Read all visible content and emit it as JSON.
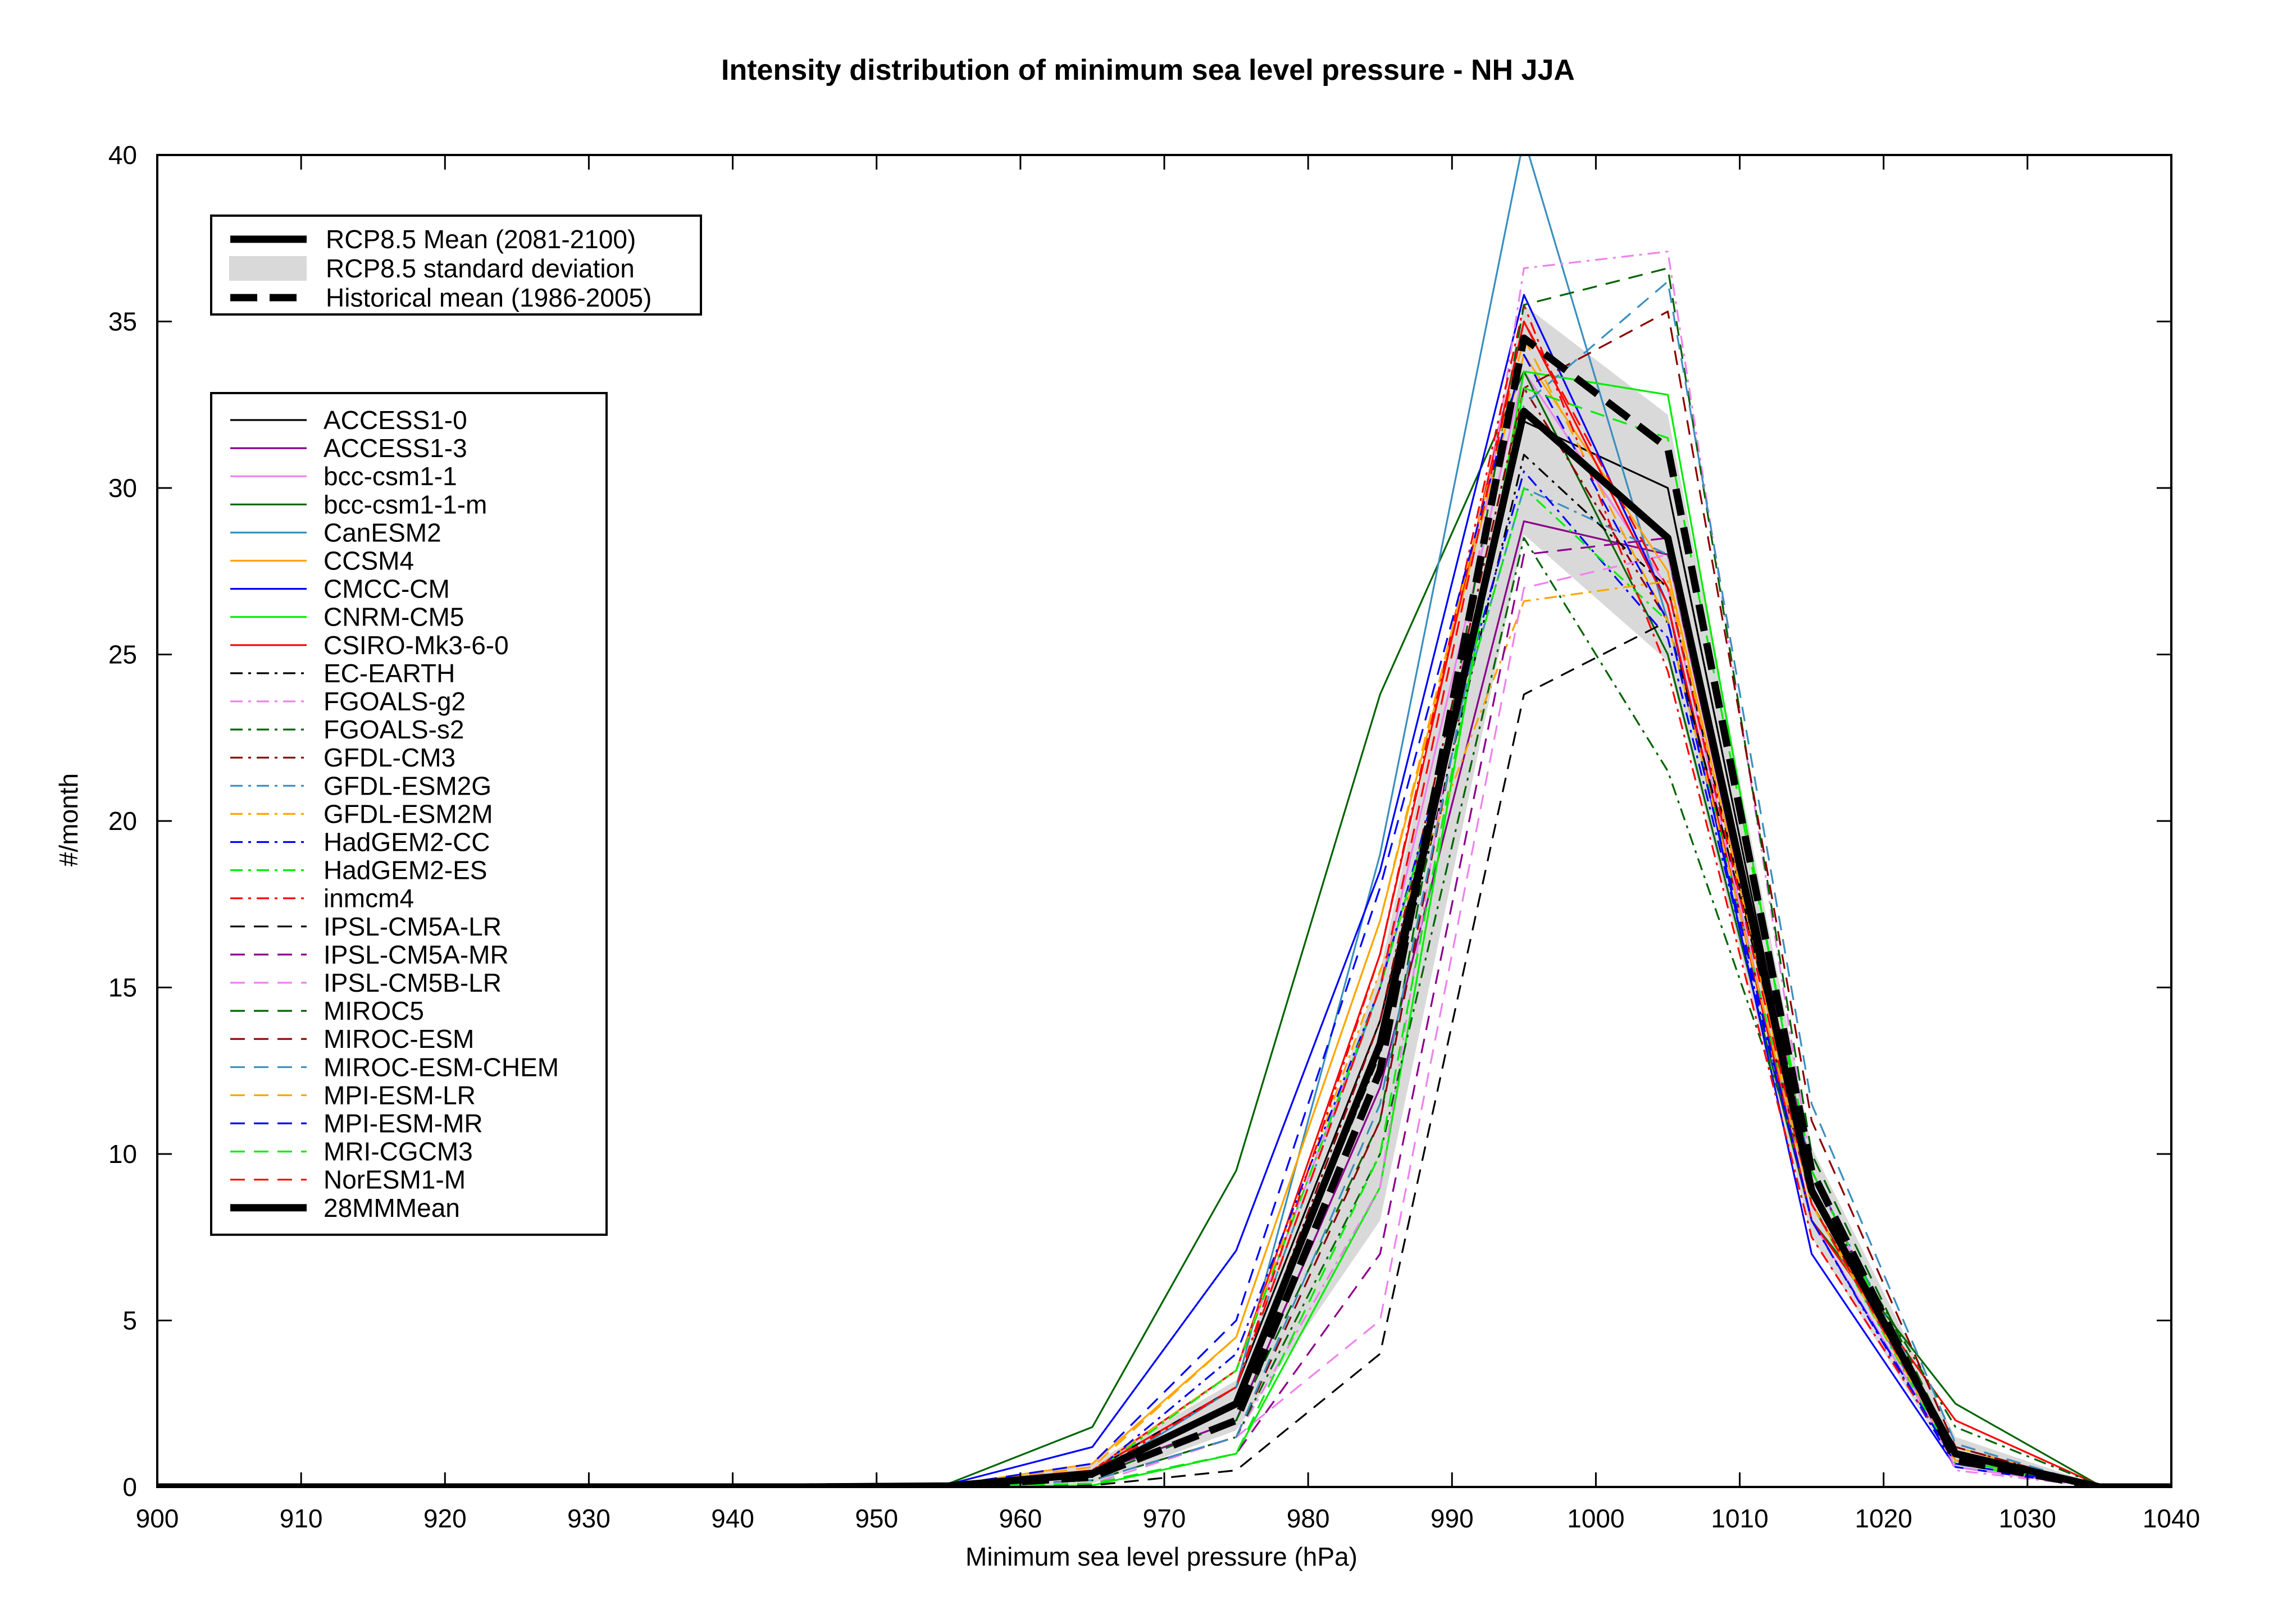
{
  "chart_data": {
    "type": "line",
    "title": "Intensity distribution of minimum sea level pressure - NH JJA",
    "xlabel": "Minimum sea level pressure (hPa)",
    "ylabel": "#/month",
    "xlim": [
      900,
      1040
    ],
    "ylim": [
      0,
      40
    ],
    "xticks": [
      "900",
      "910",
      "920",
      "930",
      "940",
      "950",
      "960",
      "970",
      "980",
      "990",
      "1000",
      "1010",
      "1020",
      "1030",
      "1040"
    ],
    "yticks": [
      "0",
      "5",
      "10",
      "15",
      "20",
      "25",
      "30",
      "35",
      "40"
    ],
    "grid": false,
    "x": [
      905,
      915,
      925,
      935,
      945,
      955,
      965,
      975,
      985,
      995,
      1005,
      1015,
      1025,
      1035
    ],
    "band": {
      "upper": [
        0,
        0,
        0,
        0,
        0,
        0.05,
        0.7,
        3.2,
        15.5,
        35.5,
        32.2,
        10.2,
        1.5,
        0.05
      ],
      "lower": [
        0,
        0,
        0,
        0,
        0,
        0.01,
        0.1,
        1.7,
        8.0,
        28.6,
        24.8,
        7.5,
        0.6,
        0.0
      ]
    },
    "legend_top": [
      {
        "name": "RCP8.5 Mean (2081-2100)",
        "style": "thick-solid"
      },
      {
        "name": "RCP8.5 standard deviation",
        "style": "band"
      },
      {
        "name": "Historical mean (1986-2005)",
        "style": "thick-dash"
      }
    ],
    "thick_series": [
      {
        "name": "RCP8.5 Mean (2081-2100)",
        "style": "thick-solid",
        "color": "#000000",
        "values": [
          0,
          0,
          0,
          0,
          0,
          0.03,
          0.4,
          2.5,
          13.3,
          32.3,
          28.5,
          8.9,
          1.0,
          0.0
        ]
      },
      {
        "name": "Historical mean (1986-2005)",
        "style": "thick-dash",
        "color": "#000000",
        "values": [
          0,
          0,
          0,
          0,
          0,
          0.02,
          0.3,
          2.0,
          12.5,
          34.5,
          31.2,
          9.5,
          0.8,
          0.0
        ]
      }
    ],
    "series": [
      {
        "name": "ACCESS1-0",
        "color": "#000000",
        "style": "solid",
        "values": [
          0,
          0,
          0,
          0,
          0,
          0.05,
          0.5,
          3.0,
          14.0,
          32.0,
          30.0,
          9.0,
          1.0,
          0
        ]
      },
      {
        "name": "ACCESS1-3",
        "color": "#8b008b",
        "style": "solid",
        "values": [
          0,
          0,
          0,
          0,
          0,
          0.03,
          0.4,
          2.0,
          12.0,
          29.0,
          28.0,
          8.5,
          1.0,
          0
        ]
      },
      {
        "name": "bcc-csm1-1",
        "color": "#ee82ee",
        "style": "solid",
        "values": [
          0,
          0,
          0,
          0,
          0,
          0.05,
          0.5,
          3.5,
          15.0,
          33.5,
          27.0,
          8.0,
          0.8,
          0
        ]
      },
      {
        "name": "bcc-csm1-1-m",
        "color": "#006400",
        "style": "solid",
        "values": [
          0,
          0,
          0,
          0,
          0,
          0.1,
          1.8,
          9.5,
          23.8,
          33.5,
          25.0,
          8.0,
          2.5,
          0.05
        ]
      },
      {
        "name": "CanESM2",
        "color": "#3a8fbf",
        "style": "solid",
        "values": [
          0,
          0,
          0,
          0,
          0,
          0.02,
          0.3,
          3.0,
          19.0,
          40.5,
          26.0,
          8.5,
          0.8,
          0
        ]
      },
      {
        "name": "CCSM4",
        "color": "#ffa500",
        "style": "solid",
        "values": [
          0,
          0,
          0,
          0,
          0,
          0.05,
          0.7,
          4.5,
          17.0,
          34.0,
          27.5,
          8.5,
          1.2,
          0
        ]
      },
      {
        "name": "CMCC-CM",
        "color": "#0000ff",
        "style": "solid",
        "values": [
          0,
          0,
          0,
          0,
          0,
          0.08,
          1.2,
          7.1,
          18.5,
          35.8,
          26.5,
          7.0,
          0.6,
          0
        ]
      },
      {
        "name": "CNRM-CM5",
        "color": "#00ee00",
        "style": "solid",
        "values": [
          0,
          0,
          0,
          0,
          0,
          0.01,
          0.05,
          1.0,
          9.0,
          33.5,
          32.8,
          9.0,
          0.8,
          0
        ]
      },
      {
        "name": "CSIRO-Mk3-6-0",
        "color": "#ff0000",
        "style": "solid",
        "values": [
          0,
          0,
          0,
          0,
          0,
          0.1,
          0.5,
          3.5,
          16.0,
          35.0,
          26.5,
          8.0,
          2.0,
          0.05
        ]
      },
      {
        "name": "EC-EARTH",
        "color": "#000000",
        "style": "dashdot",
        "values": [
          0,
          0,
          0,
          0,
          0,
          0.02,
          0.3,
          2.5,
          13.0,
          31.0,
          27.0,
          9.0,
          1.0,
          0
        ]
      },
      {
        "name": "FGOALS-g2",
        "color": "#ee82ee",
        "style": "dashdot",
        "values": [
          0,
          0,
          0,
          0,
          0,
          0.02,
          0.2,
          1.5,
          9.0,
          36.6,
          37.1,
          9.5,
          0.5,
          0
        ]
      },
      {
        "name": "FGOALS-s2",
        "color": "#006400",
        "style": "dashdot",
        "values": [
          0,
          0,
          0,
          0,
          0,
          0.01,
          0.2,
          1.5,
          10.0,
          28.5,
          21.5,
          9.0,
          1.8,
          0.05
        ]
      },
      {
        "name": "GFDL-CM3",
        "color": "#8b0000",
        "style": "dashdot",
        "values": [
          0,
          0,
          0,
          0,
          0,
          0.03,
          0.4,
          2.5,
          14.0,
          33.0,
          26.0,
          8.5,
          1.2,
          0
        ]
      },
      {
        "name": "GFDL-ESM2G",
        "color": "#3a8fbf",
        "style": "dashdot",
        "values": [
          0,
          0,
          0,
          0,
          0,
          0.03,
          0.4,
          3.0,
          15.0,
          30.0,
          28.0,
          9.5,
          1.0,
          0
        ]
      },
      {
        "name": "GFDL-ESM2M",
        "color": "#ffa500",
        "style": "dashdot",
        "values": [
          0,
          0,
          0,
          0,
          0,
          0.03,
          0.5,
          3.5,
          15.5,
          26.6,
          27.2,
          9.0,
          1.0,
          0
        ]
      },
      {
        "name": "HadGEM2-CC",
        "color": "#0000ff",
        "style": "dashdot",
        "values": [
          0,
          0,
          0,
          0,
          0,
          0.02,
          0.4,
          4.0,
          15.0,
          30.5,
          25.5,
          8.0,
          0.6,
          0
        ]
      },
      {
        "name": "HadGEM2-ES",
        "color": "#00ee00",
        "style": "dashdot",
        "values": [
          0,
          0,
          0,
          0,
          0,
          0.02,
          0.4,
          3.5,
          15.0,
          30.0,
          26.0,
          8.5,
          0.7,
          0
        ]
      },
      {
        "name": "inmcm4",
        "color": "#ff0000",
        "style": "dashdot",
        "values": [
          0,
          0,
          0,
          0,
          0,
          0.03,
          0.4,
          3.0,
          16.0,
          35.5,
          24.5,
          7.5,
          0.8,
          0
        ]
      },
      {
        "name": "IPSL-CM5A-LR",
        "color": "#000000",
        "style": "dash",
        "values": [
          0,
          0,
          0,
          0,
          0,
          0.01,
          0.05,
          0.5,
          4.0,
          23.8,
          26.0,
          9.5,
          0.8,
          0
        ]
      },
      {
        "name": "IPSL-CM5A-MR",
        "color": "#8b008b",
        "style": "dash",
        "values": [
          0,
          0,
          0,
          0,
          0,
          0.01,
          0.1,
          1.0,
          7.0,
          28.0,
          28.5,
          9.5,
          0.8,
          0
        ]
      },
      {
        "name": "IPSL-CM5B-LR",
        "color": "#ee82ee",
        "style": "dash",
        "values": [
          0,
          0,
          0,
          0,
          0,
          0.01,
          0.1,
          1.5,
          5.0,
          27.0,
          28.0,
          9.0,
          0.6,
          0
        ]
      },
      {
        "name": "MIROC5",
        "color": "#006400",
        "style": "dash",
        "values": [
          0,
          0,
          0,
          0,
          0,
          0.01,
          0.3,
          2.0,
          11.0,
          35.5,
          36.6,
          10.0,
          1.0,
          0
        ]
      },
      {
        "name": "MIROC-ESM",
        "color": "#8b0000",
        "style": "dash",
        "values": [
          0,
          0,
          0,
          0,
          0,
          0.01,
          0.2,
          1.5,
          11.0,
          33.0,
          35.3,
          11.0,
          1.2,
          0
        ]
      },
      {
        "name": "MIROC-ESM-CHEM",
        "color": "#3a8fbf",
        "style": "dash",
        "values": [
          0,
          0,
          0,
          0,
          0,
          0.01,
          0.2,
          1.5,
          11.5,
          32.5,
          36.2,
          11.5,
          1.3,
          0
        ]
      },
      {
        "name": "MPI-ESM-LR",
        "color": "#ffa500",
        "style": "dash",
        "values": [
          0,
          0,
          0,
          0,
          0,
          0.05,
          0.6,
          4.5,
          17.0,
          34.5,
          26.0,
          8.5,
          0.8,
          0
        ]
      },
      {
        "name": "MPI-ESM-MR",
        "color": "#0000ff",
        "style": "dash",
        "values": [
          0,
          0,
          0,
          0,
          0,
          0.05,
          0.7,
          5.0,
          18.0,
          34.0,
          26.0,
          8.0,
          0.7,
          0
        ]
      },
      {
        "name": "MRI-CGCM3",
        "color": "#00ee00",
        "style": "dash",
        "values": [
          0,
          0,
          0,
          0,
          0,
          0.01,
          0.1,
          1.0,
          10.0,
          33.0,
          31.5,
          9.5,
          0.8,
          0
        ]
      },
      {
        "name": "NorESM1-M",
        "color": "#ff0000",
        "style": "dash",
        "values": [
          0,
          0,
          0,
          0,
          0,
          0.03,
          0.5,
          3.0,
          15.0,
          35.0,
          27.0,
          8.5,
          0.9,
          0
        ]
      },
      {
        "name": "28MMMean",
        "color": "#000000",
        "style": "thick-solid",
        "values": [
          0,
          0,
          0,
          0,
          0,
          0.03,
          0.4,
          2.5,
          13.3,
          32.3,
          28.5,
          8.9,
          1.0,
          0
        ]
      }
    ]
  }
}
